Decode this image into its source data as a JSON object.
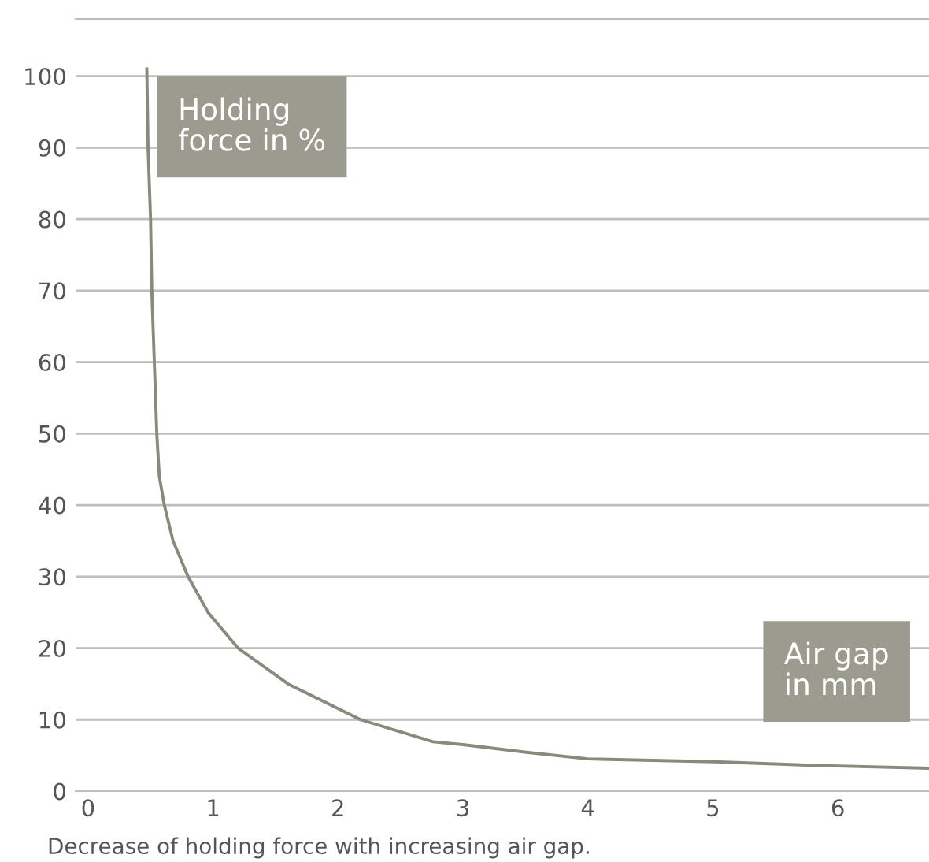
{
  "chart_data": {
    "type": "line",
    "xlabel": "Air gap\nin mm",
    "ylabel": "Holding\nforce in %",
    "annotations": [
      "Decrease of holding force with increasing air gap."
    ],
    "x": [
      0.47,
      0.48,
      0.5,
      0.51,
      0.53,
      0.55,
      0.57,
      0.61,
      0.68,
      0.8,
      0.96,
      1.2,
      1.6,
      2.18,
      2.76,
      3.0,
      3.52,
      4.0,
      5.01,
      5.81,
      6.73
    ],
    "series": [
      {
        "color": "#8a897e",
        "values": [
          101,
          90,
          80,
          70,
          60,
          50,
          44,
          40,
          35,
          30,
          25,
          20,
          15,
          10,
          6.9,
          6.5,
          5.4,
          4.5,
          4.1,
          3.6,
          3.2
        ]
      }
    ],
    "xlim": [
      -0.1,
      6.73
    ],
    "ylim": [
      0,
      108
    ],
    "xticks": [
      0,
      1,
      2,
      3,
      4,
      5,
      6
    ],
    "yticks": [
      0,
      10,
      20,
      30,
      40,
      50,
      60,
      70,
      80,
      90,
      100
    ],
    "grid": "y",
    "legend": false,
    "marker": "none",
    "line_style": "solid"
  }
}
